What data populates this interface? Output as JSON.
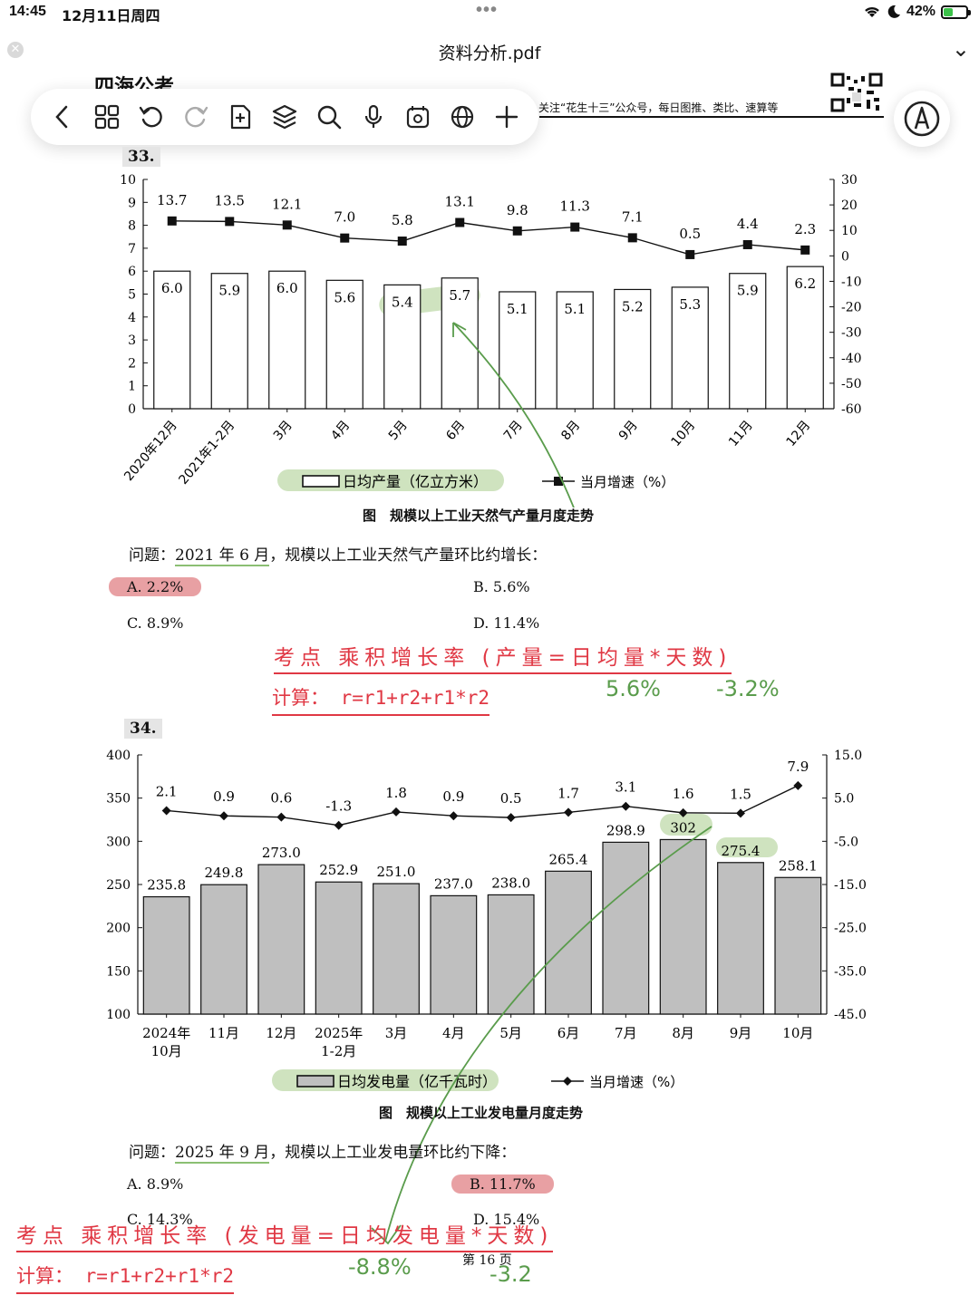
{
  "status": {
    "time": "14:45",
    "date": "12月11日周四",
    "battery": "42%",
    "battery_level": 0.42
  },
  "document": {
    "title": "资料分析.pdf",
    "brand": "四海公考",
    "follow_text": "关注“花生十三”公众号，每日图推、类比、速算等",
    "page": "第 16 页"
  },
  "toolbar": {
    "icons": [
      "back-icon",
      "grid-icon",
      "undo-icon",
      "redo-icon",
      "add-page-icon",
      "layers-icon",
      "search-icon",
      "microphone-icon",
      "shapes-icon",
      "globe-icon",
      "plus-icon"
    ]
  },
  "colors": {
    "note_red": "#e03844",
    "note_green": "#5a9c4c",
    "highlight_green": "#cfe3bf",
    "highlight_red": "#e8a0a3",
    "bar_gray": "#bfbfbf"
  },
  "q33": {
    "number": "33.",
    "caption": "图　规模以上工业天然气产量月度走势",
    "question_prefix": "问题：",
    "question_highlight": "2021 年 6 月",
    "question_rest": "，规模以上工业天然气产量环比约增长：",
    "options": [
      {
        "label": "A. 2.2%"
      },
      {
        "label": "B. 5.6%"
      },
      {
        "label": "C. 8.9%"
      },
      {
        "label": "D. 11.4%"
      }
    ],
    "note_line1": "考点 乘积增长率 (产量=日均量*天数)",
    "note_line2": "计算： r=r1+r2+r1*r2",
    "hand_values": [
      "5.6%",
      "-3.2%"
    ]
  },
  "q34": {
    "number": "34.",
    "caption": "图　规模以上工业发电量月度走势",
    "question_prefix": "问题：",
    "question_highlight": "2025 年 9 月",
    "question_rest": "，规模以上工业发电量环比约下降：",
    "options": [
      {
        "label": "A. 8.9%"
      },
      {
        "label": "B. 11.7%"
      },
      {
        "label": "C. 14.3%"
      },
      {
        "label": "D. 15.4%"
      }
    ],
    "note_line1": "考点 乘积增长率 (发电量=日均发电量*天数)",
    "note_line2": "计算： r=r1+r2+r1*r2",
    "hand_values": [
      "-8.8%",
      "-3.2"
    ]
  },
  "chart_data": [
    {
      "type": "bar",
      "categories": [
        "2020年12月",
        "2021年1-2月",
        "3月",
        "4月",
        "5月",
        "6月",
        "7月",
        "8月",
        "9月",
        "10月",
        "11月",
        "12月"
      ],
      "series": [
        {
          "name": "日均产量（亿立方米）",
          "type": "bar",
          "axis": "left",
          "values": [
            6.0,
            5.9,
            6.0,
            5.6,
            5.4,
            5.7,
            5.1,
            5.1,
            5.2,
            5.3,
            5.9,
            6.2
          ],
          "labels": [
            "6.0",
            "5.9",
            "6.0",
            "5.6",
            "5.4",
            "5.7",
            "5.1",
            "5.1",
            "5.2",
            "5.3",
            "5.9",
            "6.2"
          ]
        },
        {
          "name": "当月增速（%）",
          "type": "line",
          "axis": "right",
          "values": [
            13.7,
            13.5,
            12.1,
            7.0,
            5.8,
            13.1,
            9.8,
            11.3,
            7.1,
            0.5,
            4.4,
            2.3
          ],
          "labels": [
            "13.7",
            "13.5",
            "12.1",
            "7.0",
            "5.8",
            "13.1",
            "9.8",
            "11.3",
            "7.1",
            "0.5",
            "4.4",
            "2.3"
          ]
        }
      ],
      "ylim": [
        0,
        10
      ],
      "yticks": [
        "0",
        "1",
        "2",
        "3",
        "4",
        "5",
        "6",
        "7",
        "8",
        "9",
        "10"
      ],
      "y2lim": [
        -60,
        30
      ],
      "y2ticks": [
        "-60",
        "-50",
        "-40",
        "-30",
        "-20",
        "-10",
        "0",
        "10",
        "20",
        "30"
      ],
      "legend_position": "bottom"
    },
    {
      "type": "bar",
      "categories": [
        "2024年\n10月",
        "11月",
        "12月",
        "2025年\n1-2月",
        "3月",
        "4月",
        "5月",
        "6月",
        "7月",
        "8月",
        "9月",
        "10月"
      ],
      "series": [
        {
          "name": "日均发电量（亿千瓦时）",
          "type": "bar",
          "axis": "left",
          "values": [
            235.8,
            249.8,
            273.0,
            252.9,
            251.0,
            237.0,
            238.0,
            265.4,
            298.9,
            302,
            275.4,
            258.1
          ],
          "labels": [
            "235.8",
            "249.8",
            "273.0",
            "252.9",
            "251.0",
            "237.0",
            "238.0",
            "265.4",
            "298.9",
            "302",
            "275.4",
            "258.1"
          ]
        },
        {
          "name": "当月增速（%）",
          "type": "line",
          "axis": "right",
          "values": [
            2.1,
            0.9,
            0.6,
            -1.3,
            1.8,
            0.9,
            0.5,
            1.7,
            3.1,
            1.6,
            1.5,
            7.9
          ],
          "labels": [
            "2.1",
            "0.9",
            "0.6",
            "-1.3",
            "1.8",
            "0.9",
            "0.5",
            "1.7",
            "3.1",
            "1.6",
            "1.5",
            "7.9"
          ]
        }
      ],
      "ylim": [
        100,
        400
      ],
      "yticks": [
        "100",
        "150",
        "200",
        "250",
        "300",
        "350",
        "400"
      ],
      "y2lim": [
        -45,
        15
      ],
      "y2ticks": [
        "-45.0",
        "-35.0",
        "-25.0",
        "-15.0",
        "-5.0",
        "5.0",
        "15.0"
      ],
      "legend_position": "bottom"
    }
  ]
}
